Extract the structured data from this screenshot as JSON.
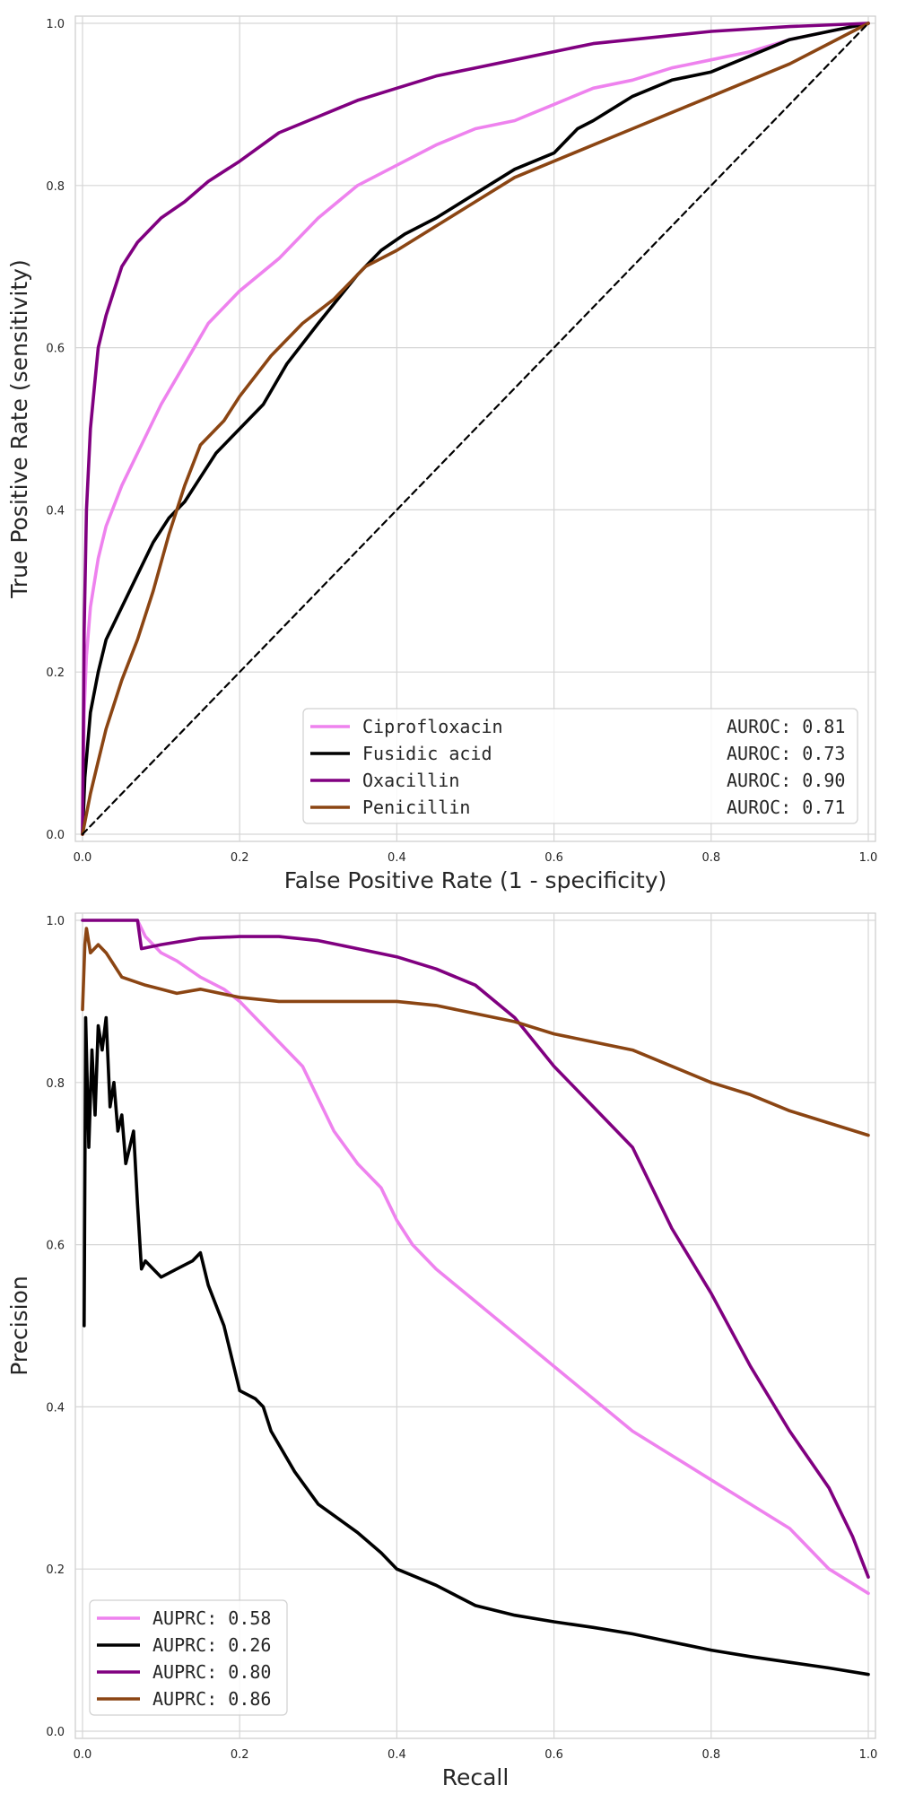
{
  "chart_data": [
    {
      "type": "line",
      "title": "",
      "xlabel": "False Positive Rate (1 - specificity)",
      "ylabel": "True Positive Rate (sensitivity)",
      "xlim": [
        0,
        1
      ],
      "ylim": [
        0,
        1
      ],
      "x_ticks": [
        "0.0",
        "0.2",
        "0.4",
        "0.6",
        "0.8",
        "1.0"
      ],
      "y_ticks": [
        "0.0",
        "0.2",
        "0.4",
        "0.6",
        "0.8",
        "1.0"
      ],
      "grid": true,
      "legend_position": "bottom-right",
      "series": [
        {
          "name": "Ciprofloxacin",
          "legend_value": "AUROC: 0.81",
          "color": "#EE82EE",
          "x": [
            0,
            0.002,
            0.005,
            0.01,
            0.02,
            0.03,
            0.05,
            0.07,
            0.1,
            0.13,
            0.16,
            0.2,
            0.25,
            0.3,
            0.35,
            0.4,
            0.45,
            0.5,
            0.55,
            0.6,
            0.65,
            0.7,
            0.75,
            0.8,
            0.85,
            0.9,
            0.95,
            1
          ],
          "y": [
            0,
            0.15,
            0.22,
            0.28,
            0.34,
            0.38,
            0.43,
            0.47,
            0.53,
            0.58,
            0.63,
            0.67,
            0.71,
            0.76,
            0.8,
            0.825,
            0.85,
            0.87,
            0.88,
            0.9,
            0.92,
            0.93,
            0.945,
            0.955,
            0.965,
            0.98,
            0.99,
            1
          ]
        },
        {
          "name": "Fusidic acid",
          "legend_value": "AUROC: 0.73",
          "color": "#000000",
          "x": [
            0,
            0.003,
            0.01,
            0.02,
            0.03,
            0.05,
            0.07,
            0.09,
            0.11,
            0.13,
            0.15,
            0.17,
            0.2,
            0.23,
            0.26,
            0.3,
            0.35,
            0.38,
            0.41,
            0.45,
            0.5,
            0.55,
            0.6,
            0.63,
            0.65,
            0.7,
            0.75,
            0.8,
            0.85,
            0.9,
            0.95,
            1
          ],
          "y": [
            0,
            0.07,
            0.15,
            0.2,
            0.24,
            0.28,
            0.32,
            0.36,
            0.39,
            0.41,
            0.44,
            0.47,
            0.5,
            0.53,
            0.58,
            0.63,
            0.69,
            0.72,
            0.74,
            0.76,
            0.79,
            0.82,
            0.84,
            0.87,
            0.88,
            0.91,
            0.93,
            0.94,
            0.96,
            0.98,
            0.99,
            1
          ]
        },
        {
          "name": "Oxacillin",
          "legend_value": "AUROC: 0.90",
          "color": "#800080",
          "x": [
            0,
            0.002,
            0.005,
            0.01,
            0.015,
            0.02,
            0.03,
            0.04,
            0.05,
            0.07,
            0.1,
            0.13,
            0.16,
            0.2,
            0.25,
            0.3,
            0.35,
            0.4,
            0.45,
            0.5,
            0.55,
            0.6,
            0.65,
            0.7,
            0.8,
            0.9,
            1
          ],
          "y": [
            0,
            0.25,
            0.4,
            0.5,
            0.55,
            0.6,
            0.64,
            0.67,
            0.7,
            0.73,
            0.76,
            0.78,
            0.805,
            0.83,
            0.865,
            0.885,
            0.905,
            0.92,
            0.935,
            0.945,
            0.955,
            0.965,
            0.975,
            0.98,
            0.99,
            0.996,
            1
          ]
        },
        {
          "name": "Penicillin",
          "legend_value": "AUROC: 0.71",
          "color": "#8B4513",
          "x": [
            0,
            0.01,
            0.02,
            0.03,
            0.05,
            0.07,
            0.09,
            0.11,
            0.13,
            0.15,
            0.18,
            0.2,
            0.24,
            0.28,
            0.32,
            0.36,
            0.4,
            0.45,
            0.5,
            0.55,
            0.6,
            0.65,
            0.7,
            0.75,
            0.8,
            0.85,
            0.9,
            0.95,
            1
          ],
          "y": [
            0,
            0.05,
            0.09,
            0.13,
            0.19,
            0.24,
            0.3,
            0.37,
            0.43,
            0.48,
            0.51,
            0.54,
            0.59,
            0.63,
            0.66,
            0.7,
            0.72,
            0.75,
            0.78,
            0.81,
            0.83,
            0.85,
            0.87,
            0.89,
            0.91,
            0.93,
            0.95,
            0.975,
            1
          ]
        },
        {
          "name": "",
          "role": "chance line",
          "color": "#000000",
          "dashed": true,
          "x": [
            0,
            1
          ],
          "y": [
            0,
            1
          ]
        }
      ]
    },
    {
      "type": "line",
      "title": "",
      "xlabel": "Recall",
      "ylabel": "Precision",
      "xlim": [
        0,
        1
      ],
      "ylim": [
        0,
        1
      ],
      "x_ticks": [
        "0.0",
        "0.2",
        "0.4",
        "0.6",
        "0.8",
        "1.0"
      ],
      "y_ticks": [
        "0.0",
        "0.2",
        "0.4",
        "0.6",
        "0.8",
        "1.0"
      ],
      "grid": true,
      "legend_position": "bottom-left",
      "series": [
        {
          "name": "",
          "legend_value": "AUPRC: 0.58",
          "color": "#EE82EE",
          "x": [
            0.07,
            0.08,
            0.1,
            0.12,
            0.15,
            0.18,
            0.2,
            0.22,
            0.25,
            0.28,
            0.3,
            0.32,
            0.35,
            0.38,
            0.4,
            0.42,
            0.45,
            0.5,
            0.55,
            0.6,
            0.65,
            0.7,
            0.75,
            0.8,
            0.85,
            0.9,
            0.95,
            1
          ],
          "y": [
            1.0,
            0.98,
            0.96,
            0.95,
            0.93,
            0.915,
            0.9,
            0.88,
            0.85,
            0.82,
            0.78,
            0.74,
            0.7,
            0.67,
            0.63,
            0.6,
            0.57,
            0.53,
            0.49,
            0.45,
            0.41,
            0.37,
            0.34,
            0.31,
            0.28,
            0.25,
            0.2,
            0.17
          ]
        },
        {
          "name": "",
          "legend_value": "AUPRC: 0.26",
          "color": "#000000",
          "x": [
            0.002,
            0.004,
            0.008,
            0.012,
            0.016,
            0.02,
            0.025,
            0.03,
            0.035,
            0.04,
            0.045,
            0.05,
            0.055,
            0.06,
            0.065,
            0.07,
            0.075,
            0.08,
            0.09,
            0.1,
            0.12,
            0.14,
            0.15,
            0.16,
            0.18,
            0.2,
            0.22,
            0.23,
            0.24,
            0.27,
            0.3,
            0.35,
            0.38,
            0.4,
            0.45,
            0.5,
            0.55,
            0.6,
            0.65,
            0.7,
            0.75,
            0.8,
            0.85,
            0.9,
            0.95,
            1
          ],
          "y": [
            0.5,
            0.88,
            0.72,
            0.84,
            0.76,
            0.87,
            0.84,
            0.88,
            0.77,
            0.8,
            0.74,
            0.76,
            0.7,
            0.72,
            0.74,
            0.65,
            0.57,
            0.58,
            0.57,
            0.56,
            0.57,
            0.58,
            0.59,
            0.55,
            0.5,
            0.42,
            0.41,
            0.4,
            0.37,
            0.32,
            0.28,
            0.245,
            0.22,
            0.2,
            0.18,
            0.155,
            0.143,
            0.135,
            0.128,
            0.12,
            0.11,
            0.1,
            0.092,
            0.085,
            0.078,
            0.07
          ]
        },
        {
          "name": "",
          "legend_value": "AUPRC: 0.80",
          "color": "#800080",
          "x": [
            0,
            0.07,
            0.075,
            0.1,
            0.15,
            0.2,
            0.25,
            0.3,
            0.35,
            0.4,
            0.45,
            0.5,
            0.55,
            0.6,
            0.65,
            0.7,
            0.75,
            0.8,
            0.85,
            0.9,
            0.95,
            0.98,
            1
          ],
          "y": [
            1.0,
            1.0,
            0.965,
            0.97,
            0.978,
            0.98,
            0.98,
            0.975,
            0.965,
            0.955,
            0.94,
            0.92,
            0.88,
            0.82,
            0.77,
            0.72,
            0.62,
            0.54,
            0.45,
            0.37,
            0.3,
            0.24,
            0.19
          ]
        },
        {
          "name": "",
          "legend_value": "AUPRC: 0.86",
          "color": "#8B4513",
          "x": [
            0,
            0.003,
            0.005,
            0.01,
            0.02,
            0.03,
            0.05,
            0.08,
            0.1,
            0.12,
            0.15,
            0.2,
            0.25,
            0.3,
            0.35,
            0.4,
            0.45,
            0.5,
            0.55,
            0.6,
            0.65,
            0.7,
            0.75,
            0.8,
            0.85,
            0.9,
            0.95,
            1
          ],
          "y": [
            0.89,
            0.97,
            0.99,
            0.96,
            0.97,
            0.96,
            0.93,
            0.92,
            0.915,
            0.91,
            0.915,
            0.905,
            0.9,
            0.9,
            0.9,
            0.9,
            0.895,
            0.885,
            0.875,
            0.86,
            0.85,
            0.84,
            0.82,
            0.8,
            0.785,
            0.765,
            0.75,
            0.735
          ]
        }
      ]
    }
  ]
}
